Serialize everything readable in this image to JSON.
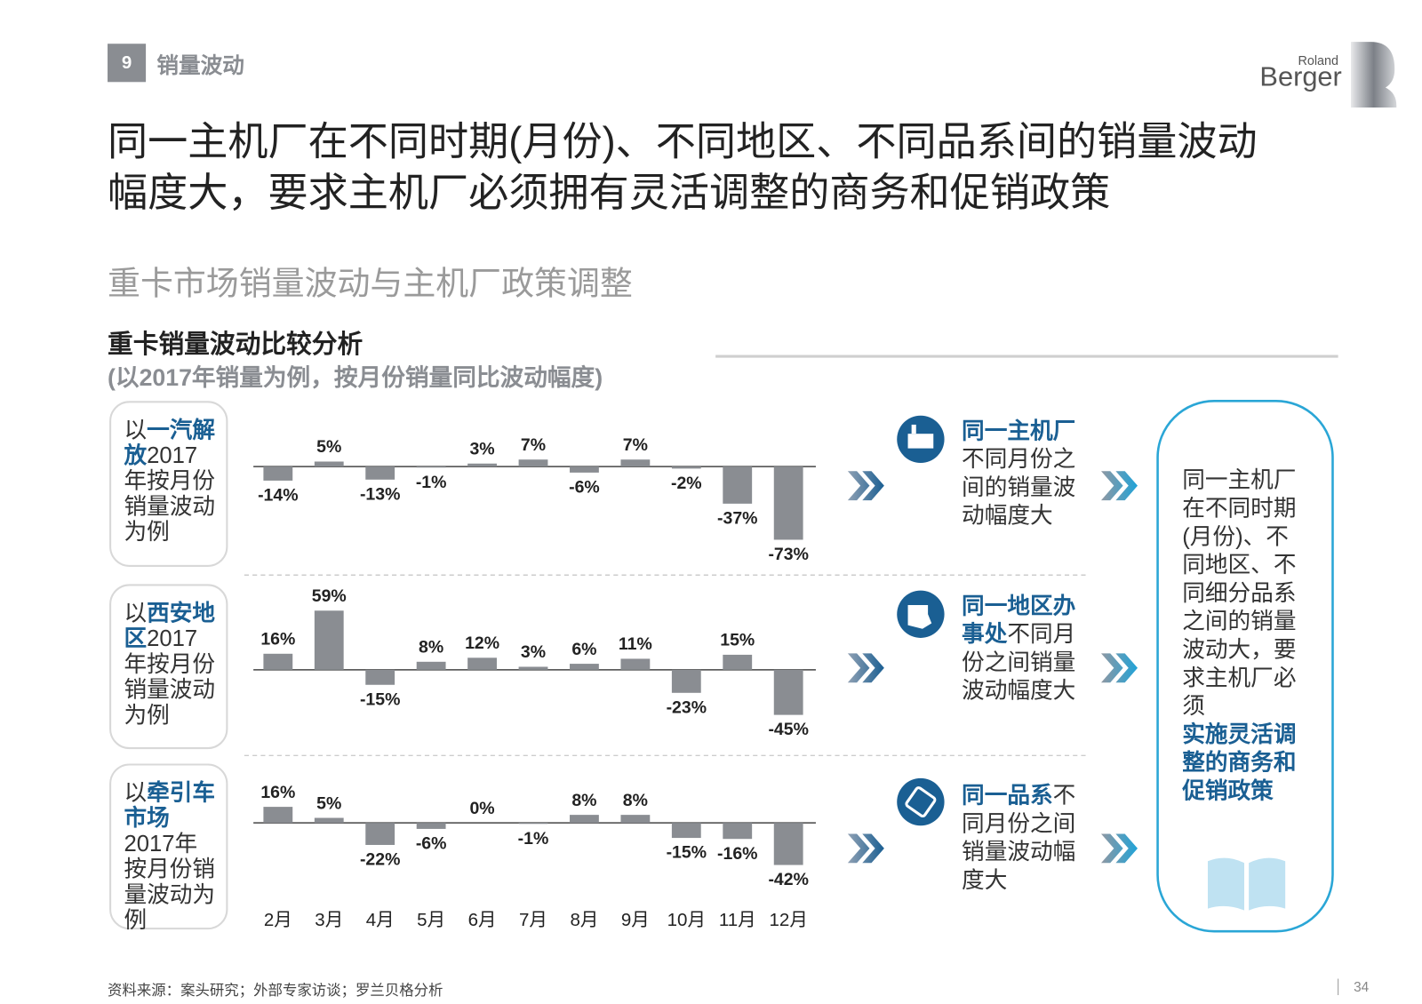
{
  "header": {
    "section_number": "9",
    "section_title": "销量波动"
  },
  "logo": {
    "line1": "Roland",
    "line2": "Berger"
  },
  "title_lines": [
    "同一主机厂在不同时期(月份)、不同地区、不同品系间的销量波动",
    "幅度大，要求主机厂必须拥有灵活调整的商务和促销政策"
  ],
  "subtitle": "重卡市场销量波动与主机厂政策调整",
  "section": {
    "title": "重卡销量波动比较分析",
    "note": "(以2017年销量为例，按月份销量同比波动幅度)"
  },
  "chart_data": [
    {
      "type": "bar",
      "color": "#8a8d92",
      "label": {
        "before": "以",
        "highlight": "一汽解放",
        "after": "2017年按月份销量波动为例"
      },
      "values": [
        -14,
        5,
        -13,
        -1,
        3,
        7,
        -6,
        7,
        -2,
        -37,
        -73
      ],
      "value_labels": [
        "-14%",
        "5%",
        "-13%",
        "-1%",
        "3%",
        "7%",
        "-6%",
        "7%",
        "-2%",
        "-37%",
        "-73%"
      ]
    },
    {
      "type": "bar",
      "color": "#8a8d92",
      "label": {
        "before": "以",
        "highlight": "西安地区",
        "after": "2017年按月份销量波动为例"
      },
      "values": [
        16,
        59,
        -15,
        8,
        12,
        3,
        6,
        11,
        -23,
        15,
        -45
      ],
      "value_labels": [
        "16%",
        "59%",
        "-15%",
        "8%",
        "12%",
        "3%",
        "6%",
        "11%",
        "-23%",
        "15%",
        "-45%"
      ]
    },
    {
      "type": "bar",
      "color": "#8a8d92",
      "label": {
        "before": "以",
        "highlight": "牵引车市场",
        "after": "2017年按月份销量波动为例"
      },
      "categories": [
        "2月",
        "3月",
        "4月",
        "5月",
        "6月",
        "7月",
        "8月",
        "9月",
        "10月",
        "11月",
        "12月"
      ],
      "values": [
        16,
        5,
        -22,
        -6,
        0,
        -1,
        8,
        8,
        -15,
        -16,
        -42
      ],
      "value_labels": [
        "16%",
        "5%",
        "-22%",
        "-6%",
        "0%",
        "-1%",
        "8%",
        "8%",
        "-15%",
        "-16%",
        "-42%"
      ]
    }
  ],
  "callouts": [
    {
      "highlight": "同一主机厂",
      "text": "不同月份之间的销量波动幅度大"
    },
    {
      "highlight": "同一地区办事处",
      "text": "不同月份之间销量波动幅度大"
    },
    {
      "highlight": "同一品系",
      "text": "不同月份之间销量波动幅度大"
    }
  ],
  "conclusion": {
    "text": "同一主机厂在不同时期(月份)、不同地区、不同细分品系之间的销量波动大，要求主机厂必须",
    "highlight": "实施灵活调整的商务和促销政策"
  },
  "footer": {
    "source": "资料来源：案头研究；外部专家访谈；罗兰贝格分析",
    "page": "34"
  }
}
